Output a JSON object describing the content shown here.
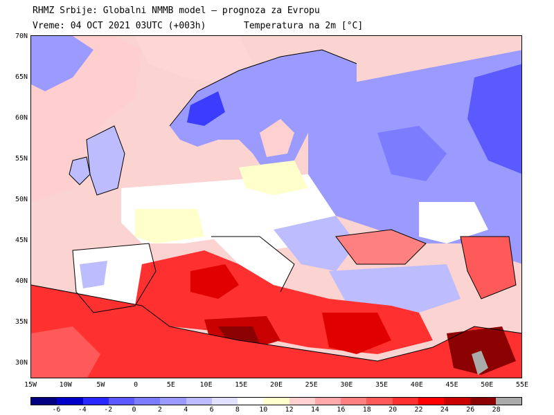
{
  "title": {
    "line1": "RHMZ Srbije: Globalni NMMB model — prognoza za Evropu",
    "line2_left": "Vreme: 04 OCT 2021 03UTC (+003h)",
    "line2_right": "Temperatura na 2m [°C]"
  },
  "lat_labels": [
    "70N",
    "65N",
    "60N",
    "55N",
    "50N",
    "45N",
    "40N",
    "35N",
    "30N"
  ],
  "lon_labels": [
    "15W",
    "10W",
    "5W",
    "0",
    "5E",
    "10E",
    "15E",
    "20E",
    "25E",
    "30E",
    "35E",
    "40E",
    "45E",
    "50E",
    "55E"
  ],
  "colorbar": {
    "colors": [
      "#000080",
      "#0000c8",
      "#2828ff",
      "#5a5aff",
      "#7c7cff",
      "#9a9aff",
      "#bcbcff",
      "#e0e0ff",
      "#ffffff",
      "#ffffcc",
      "#ffd0d0",
      "#ffaaaa",
      "#ff8080",
      "#ff5a5a",
      "#ff3030",
      "#ff0000",
      "#c80000",
      "#8b0000",
      "#aaaaaa"
    ],
    "labels": [
      "-6",
      "-4",
      "-2",
      "0",
      "2",
      "4",
      "6",
      "8",
      "10",
      "12",
      "14",
      "16",
      "18",
      "20",
      "22",
      "24",
      "26",
      "28"
    ]
  },
  "map": {
    "background_color": "#f9dddb",
    "sea_warm_color": "#ff3030",
    "sea_hot_color": "#e00000",
    "sea_extreme_color": "#8b0000",
    "land_cool_color": "#a9a9ff",
    "land_cold_color": "#5a5aff",
    "land_mild_color": "#ffffcc",
    "land_neutral_color": "#ffffff",
    "land_grey_color": "#aaaaaa"
  }
}
